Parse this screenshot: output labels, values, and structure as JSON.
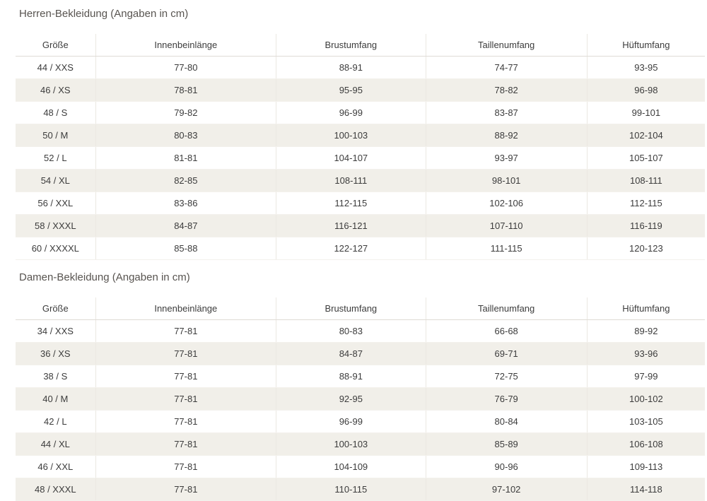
{
  "colors": {
    "stripe": "#f1efe9",
    "column_separator": "#ebe8e2",
    "header_border": "#dfdcd5",
    "text": "#3c3c3c",
    "title": "#585450"
  },
  "tables": [
    {
      "id": "herren",
      "title": "Herren-Bekleidung (Angaben in cm)",
      "columns": [
        "Größe",
        "Innenbeinlänge",
        "Brustumfang",
        "Taillenumfang",
        "Hüftumfang"
      ],
      "rows": [
        [
          "44 / XXS",
          "77-80",
          "88-91",
          "74-77",
          "93-95"
        ],
        [
          "46 / XS",
          "78-81",
          "95-95",
          "78-82",
          "96-98"
        ],
        [
          "48 / S",
          "79-82",
          "96-99",
          "83-87",
          "99-101"
        ],
        [
          "50 / M",
          "80-83",
          "100-103",
          "88-92",
          "102-104"
        ],
        [
          "52 / L",
          "81-81",
          "104-107",
          "93-97",
          "105-107"
        ],
        [
          "54 / XL",
          "82-85",
          "108-111",
          "98-101",
          "108-111"
        ],
        [
          "56 / XXL",
          "83-86",
          "112-115",
          "102-106",
          "112-115"
        ],
        [
          "58 / XXXL",
          "84-87",
          "116-121",
          "107-110",
          "116-119"
        ],
        [
          "60 / XXXXL",
          "85-88",
          "122-127",
          "111-115",
          "120-123"
        ]
      ]
    },
    {
      "id": "damen",
      "title": "Damen-Bekleidung (Angaben in cm)",
      "columns": [
        "Größe",
        "Innenbeinlänge",
        "Brustumfang",
        "Taillenumfang",
        "Hüftumfang"
      ],
      "rows": [
        [
          "34 / XXS",
          "77-81",
          "80-83",
          "66-68",
          "89-92"
        ],
        [
          "36 / XS",
          "77-81",
          "84-87",
          "69-71",
          "93-96"
        ],
        [
          "38 / S",
          "77-81",
          "88-91",
          "72-75",
          "97-99"
        ],
        [
          "40 / M",
          "77-81",
          "92-95",
          "76-79",
          "100-102"
        ],
        [
          "42 / L",
          "77-81",
          "96-99",
          "80-84",
          "103-105"
        ],
        [
          "44 / XL",
          "77-81",
          "100-103",
          "85-89",
          "106-108"
        ],
        [
          "46 / XXL",
          "77-81",
          "104-109",
          "90-96",
          "109-113"
        ],
        [
          "48 / XXXL",
          "77-81",
          "110-115",
          "97-102",
          "114-118"
        ]
      ]
    }
  ]
}
